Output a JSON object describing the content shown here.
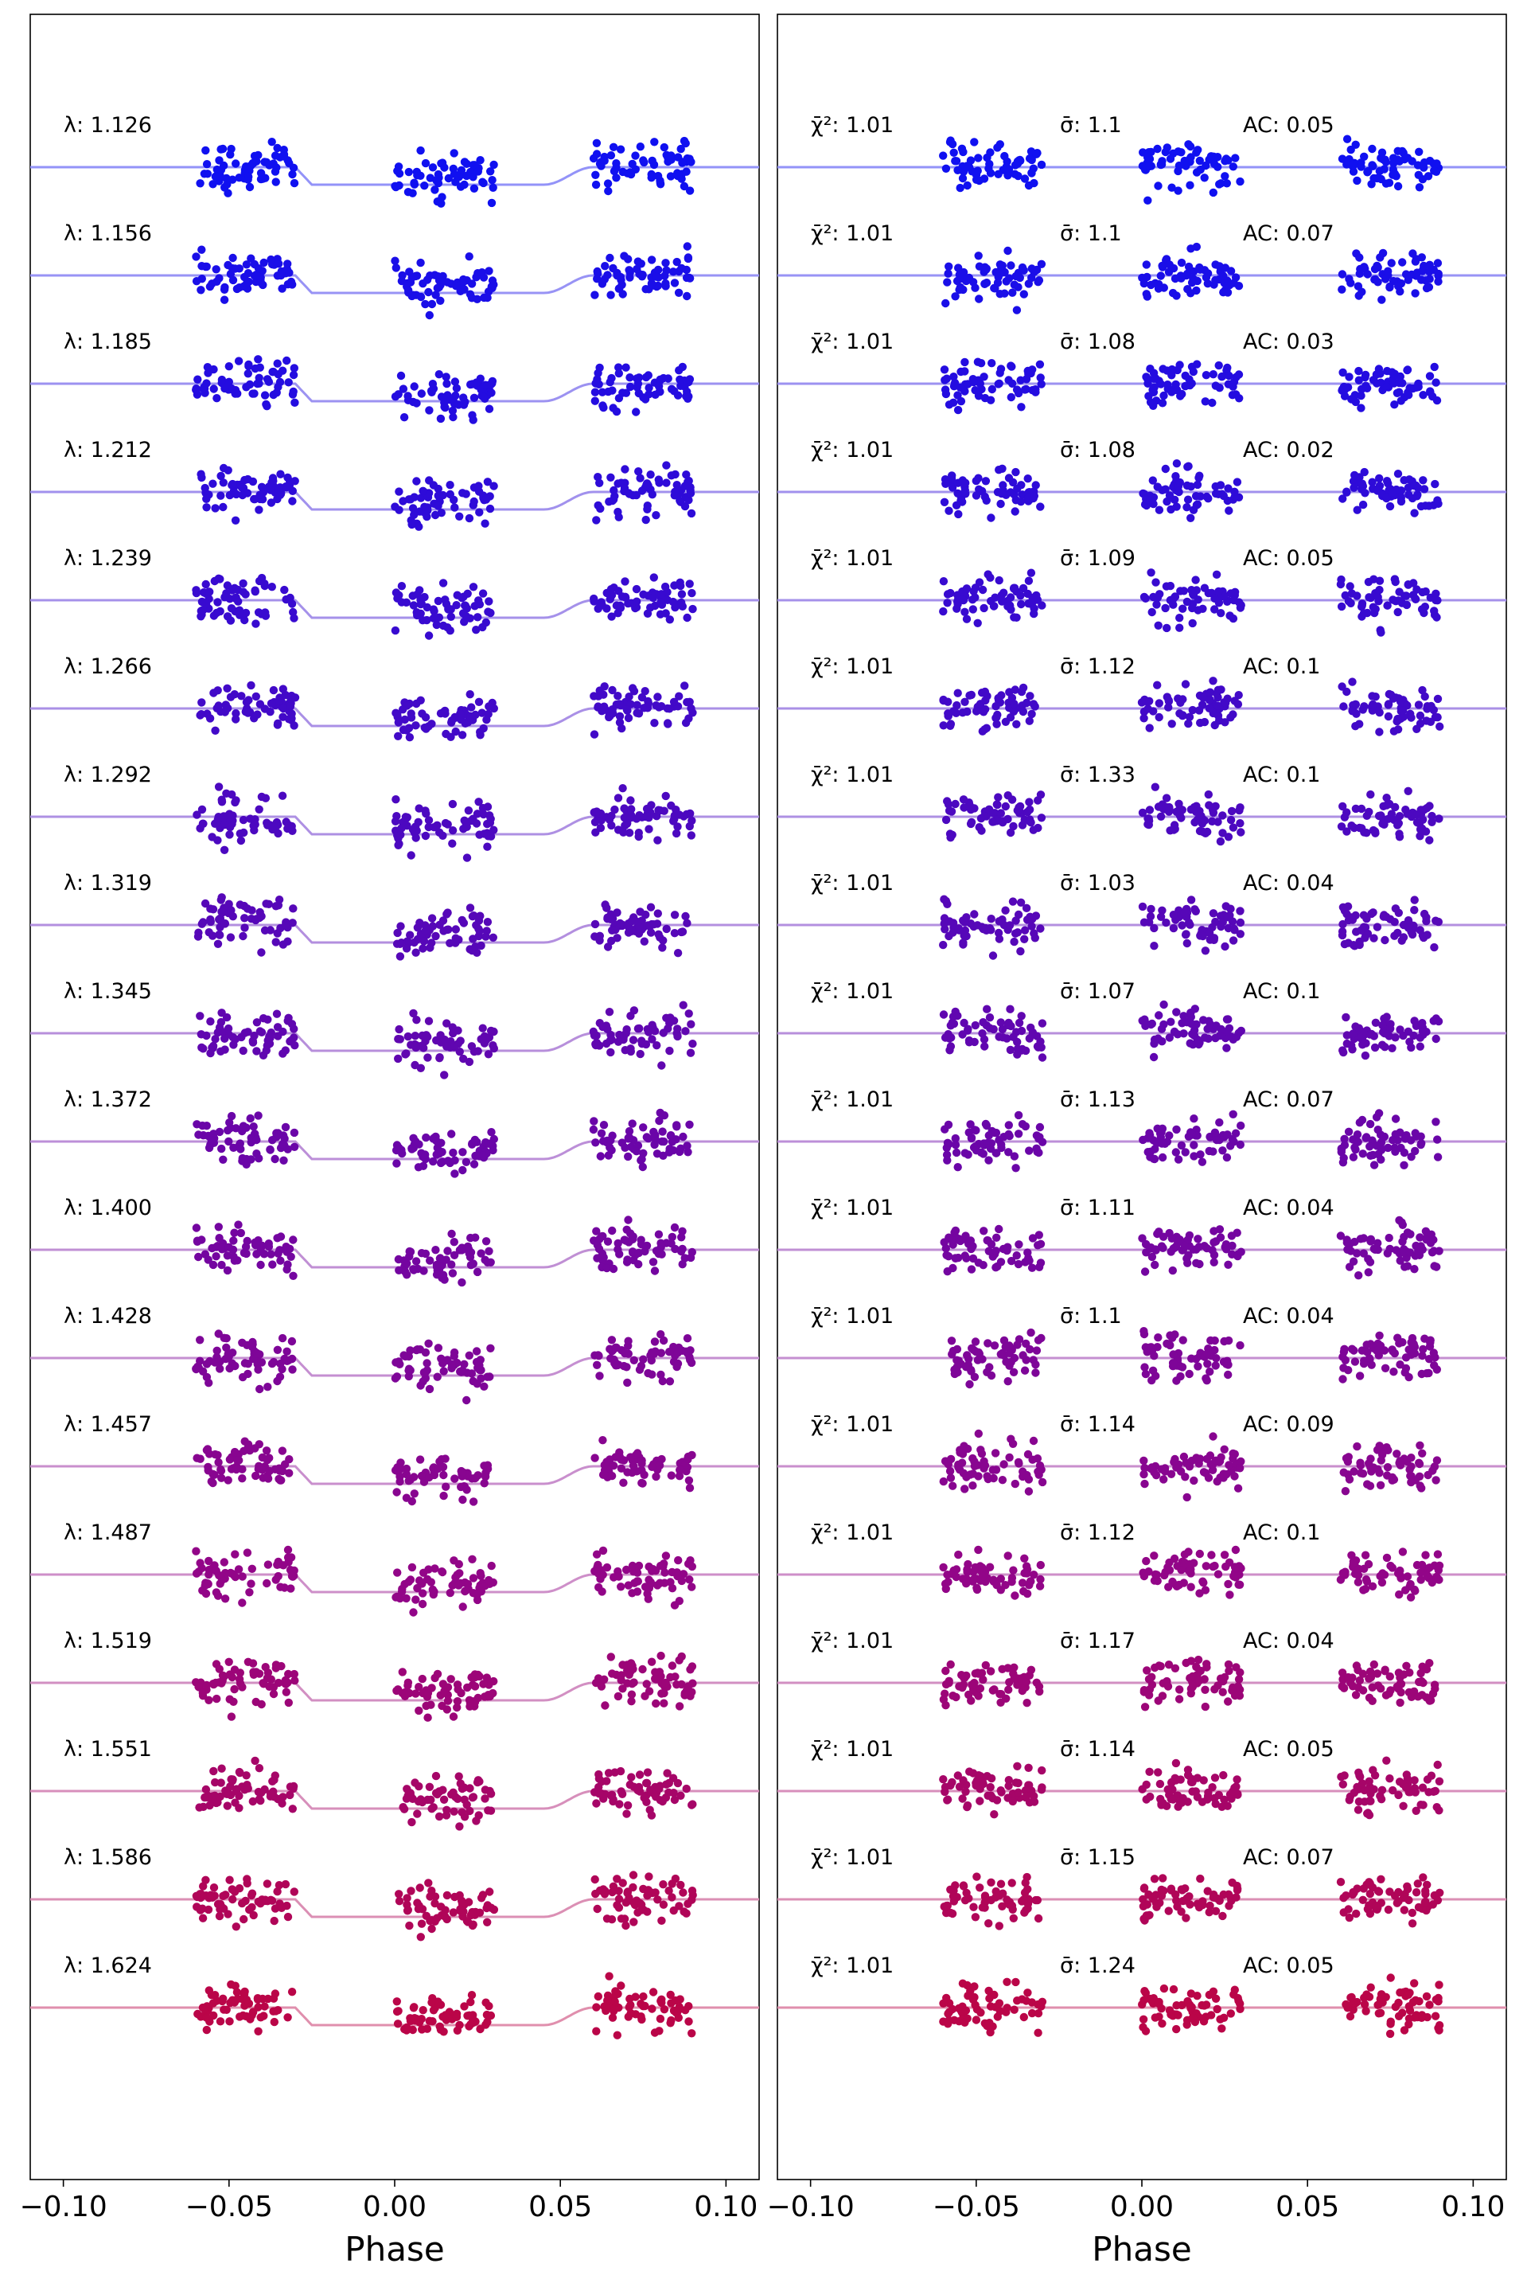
{
  "chart_data": [
    {
      "type": "scatter",
      "panel": "left",
      "xlabel": "Phase",
      "ylabel": "",
      "xlim": [
        -0.11,
        0.11
      ],
      "xticks": [
        -0.1,
        -0.05,
        0.0,
        0.05,
        0.1
      ],
      "xtick_labels": [
        "−0.10",
        "−0.05",
        "0.00",
        "0.05",
        "0.10"
      ],
      "yticks": "none",
      "grid": false,
      "phase_windows": [
        [
          -0.06,
          -0.03
        ],
        [
          0.0,
          0.03
        ],
        [
          0.06,
          0.09
        ]
      ],
      "model": {
        "transit_depth_relative": 0.22,
        "ingress_phase": 0.045,
        "egress_phase": 0.06
      },
      "series": [
        {
          "label": "λ: 1.126",
          "color": "#1010f0"
        },
        {
          "label": "λ: 1.156",
          "color": "#1a0ee8"
        },
        {
          "label": "λ: 1.185",
          "color": "#240ce0"
        },
        {
          "label": "λ: 1.212",
          "color": "#2e0bd8"
        },
        {
          "label": "λ: 1.239",
          "color": "#380ad0"
        },
        {
          "label": "λ: 1.266",
          "color": "#4209c8"
        },
        {
          "label": "λ: 1.292",
          "color": "#4c08c0"
        },
        {
          "label": "λ: 1.319",
          "color": "#5607b8"
        },
        {
          "label": "λ: 1.345",
          "color": "#6006b0"
        },
        {
          "label": "λ: 1.372",
          "color": "#6a05a8"
        },
        {
          "label": "λ: 1.400",
          "color": "#7405a0"
        },
        {
          "label": "λ: 1.428",
          "color": "#7e0598"
        },
        {
          "label": "λ: 1.457",
          "color": "#880590"
        },
        {
          "label": "λ: 1.487",
          "color": "#920588"
        },
        {
          "label": "λ: 1.519",
          "color": "#9c0578"
        },
        {
          "label": "λ: 1.551",
          "color": "#a60568"
        },
        {
          "label": "λ: 1.586",
          "color": "#b00558"
        },
        {
          "label": "λ: 1.624",
          "color": "#ba0548"
        }
      ]
    },
    {
      "type": "scatter",
      "panel": "right",
      "xlabel": "Phase",
      "ylabel": "",
      "xlim": [
        -0.11,
        0.11
      ],
      "xticks": [
        -0.1,
        -0.05,
        0.0,
        0.05,
        0.1
      ],
      "xtick_labels": [
        "−0.10",
        "−0.05",
        "0.00",
        "0.05",
        "0.10"
      ],
      "yticks": "none",
      "grid": false,
      "phase_windows": [
        [
          -0.06,
          -0.03
        ],
        [
          0.0,
          0.03
        ],
        [
          0.06,
          0.09
        ]
      ],
      "series": [
        {
          "chi2": "1.01",
          "sigma": "1.1",
          "ac": "0.05",
          "color": "#1010f0"
        },
        {
          "chi2": "1.01",
          "sigma": "1.1",
          "ac": "0.07",
          "color": "#1a0ee8"
        },
        {
          "chi2": "1.01",
          "sigma": "1.08",
          "ac": "0.03",
          "color": "#240ce0"
        },
        {
          "chi2": "1.01",
          "sigma": "1.08",
          "ac": "0.02",
          "color": "#2e0bd8"
        },
        {
          "chi2": "1.01",
          "sigma": "1.09",
          "ac": "0.05",
          "color": "#380ad0"
        },
        {
          "chi2": "1.01",
          "sigma": "1.12",
          "ac": "0.1",
          "color": "#4209c8"
        },
        {
          "chi2": "1.01",
          "sigma": "1.33",
          "ac": "0.1",
          "color": "#4c08c0"
        },
        {
          "chi2": "1.01",
          "sigma": "1.03",
          "ac": "0.04",
          "color": "#5607b8"
        },
        {
          "chi2": "1.01",
          "sigma": "1.07",
          "ac": "0.1",
          "color": "#6006b0"
        },
        {
          "chi2": "1.01",
          "sigma": "1.13",
          "ac": "0.07",
          "color": "#6a05a8"
        },
        {
          "chi2": "1.01",
          "sigma": "1.11",
          "ac": "0.04",
          "color": "#7405a0"
        },
        {
          "chi2": "1.01",
          "sigma": "1.1",
          "ac": "0.04",
          "color": "#7e0598"
        },
        {
          "chi2": "1.01",
          "sigma": "1.14",
          "ac": "0.09",
          "color": "#880590"
        },
        {
          "chi2": "1.01",
          "sigma": "1.12",
          "ac": "0.1",
          "color": "#920588"
        },
        {
          "chi2": "1.01",
          "sigma": "1.17",
          "ac": "0.04",
          "color": "#9c0578"
        },
        {
          "chi2": "1.01",
          "sigma": "1.14",
          "ac": "0.05",
          "color": "#a60568"
        },
        {
          "chi2": "1.01",
          "sigma": "1.15",
          "ac": "0.07",
          "color": "#b00558"
        },
        {
          "chi2": "1.01",
          "sigma": "1.24",
          "ac": "0.05",
          "color": "#ba0548"
        }
      ]
    }
  ],
  "labels": {
    "chi2_prefix": "χ̄²: ",
    "sigma_prefix": "σ̄: ",
    "ac_prefix": "AC: "
  }
}
